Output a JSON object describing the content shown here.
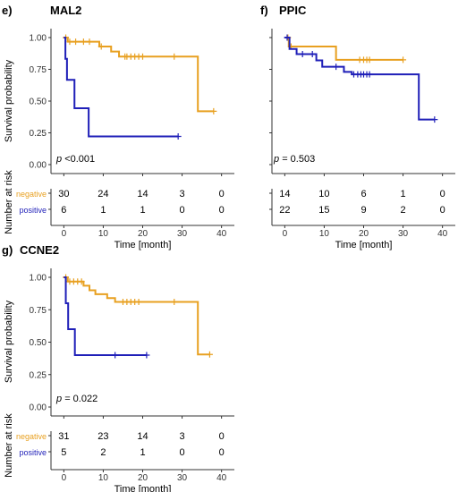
{
  "colors": {
    "negative": "#E8A020",
    "positive": "#1F1FB8",
    "axis": "#333333",
    "text": "#000000"
  },
  "common": {
    "ylabel": "Survival probability",
    "risk_ylabel": "Number at risk",
    "xlabel": "Time [month]",
    "groups": [
      "negative",
      "positive"
    ]
  },
  "chart_data": [
    {
      "type": "line",
      "panel": "e)",
      "title": "MAL2",
      "xlabel": "Time [month]",
      "ylabel": "Survival probability",
      "xlim": [
        0,
        40
      ],
      "ylim": [
        0,
        1
      ],
      "xticks": [
        0,
        10,
        20,
        30,
        40
      ],
      "yticks": [
        0.0,
        0.25,
        0.5,
        0.75,
        1.0
      ],
      "ytick_labels": [
        "0.00",
        "0.25",
        "0.50",
        "0.75",
        "1.00"
      ],
      "p_label": "p",
      "p_value": "<0.001",
      "series": [
        {
          "name": "negative",
          "steps": [
            [
              0,
              1.0
            ],
            [
              1,
              0.967
            ],
            [
              9,
              0.93
            ],
            [
              12,
              0.89
            ],
            [
              14,
              0.85
            ],
            [
              34,
              0.85
            ],
            [
              34,
              0.42
            ],
            [
              38,
              0.42
            ]
          ],
          "censor": [
            [
              0.5,
              1.0
            ],
            [
              1.5,
              0.967
            ],
            [
              3,
              0.967
            ],
            [
              5,
              0.967
            ],
            [
              6.5,
              0.967
            ],
            [
              9.5,
              0.93
            ],
            [
              15.5,
              0.85
            ],
            [
              16,
              0.85
            ],
            [
              17,
              0.85
            ],
            [
              18,
              0.85
            ],
            [
              19,
              0.85
            ],
            [
              20,
              0.85
            ],
            [
              28,
              0.85
            ],
            [
              38,
              0.42
            ]
          ]
        },
        {
          "name": "positive",
          "steps": [
            [
              0,
              1.0
            ],
            [
              0.4,
              0.833
            ],
            [
              0.8,
              0.667
            ],
            [
              2.7,
              0.667
            ],
            [
              2.7,
              0.444
            ],
            [
              6.3,
              0.444
            ],
            [
              6.3,
              0.222
            ],
            [
              29,
              0.222
            ]
          ],
          "censor": [
            [
              29,
              0.222
            ]
          ]
        }
      ],
      "risk_table": {
        "times": [
          0,
          10,
          20,
          30,
          40
        ],
        "negative": [
          30,
          24,
          14,
          3,
          0
        ],
        "positive": [
          6,
          1,
          1,
          0,
          0
        ]
      }
    },
    {
      "type": "line",
      "panel": "f)",
      "title": "PPIC",
      "xlabel": "Time [month]",
      "ylabel": "",
      "xlim": [
        0,
        40
      ],
      "ylim": [
        0,
        1
      ],
      "xticks": [
        0,
        10,
        20,
        30,
        40
      ],
      "yticks": [
        0.0,
        0.25,
        0.5,
        0.75,
        1.0
      ],
      "ytick_labels": [],
      "p_label": "p",
      "p_value": "= 0.503",
      "series": [
        {
          "name": "negative",
          "steps": [
            [
              0,
              1.0
            ],
            [
              1,
              0.93
            ],
            [
              13,
              0.93
            ],
            [
              13,
              0.825
            ],
            [
              30,
              0.825
            ]
          ],
          "censor": [
            [
              0.8,
              1.0
            ],
            [
              1.6,
              0.93
            ],
            [
              19,
              0.825
            ],
            [
              20,
              0.825
            ],
            [
              20.8,
              0.825
            ],
            [
              21.5,
              0.825
            ],
            [
              30,
              0.825
            ]
          ]
        },
        {
          "name": "positive",
          "steps": [
            [
              0,
              1.0
            ],
            [
              1.2,
              0.91
            ],
            [
              3,
              0.91
            ],
            [
              3,
              0.87
            ],
            [
              8,
              0.87
            ],
            [
              8,
              0.82
            ],
            [
              9.5,
              0.82
            ],
            [
              9.5,
              0.77
            ],
            [
              15,
              0.77
            ],
            [
              15,
              0.73
            ],
            [
              17,
              0.73
            ],
            [
              17,
              0.71
            ],
            [
              34,
              0.71
            ],
            [
              34,
              0.355
            ],
            [
              38,
              0.355
            ]
          ],
          "censor": [
            [
              0.6,
              1.0
            ],
            [
              4.5,
              0.87
            ],
            [
              7,
              0.87
            ],
            [
              13,
              0.77
            ],
            [
              17.5,
              0.71
            ],
            [
              18.5,
              0.71
            ],
            [
              19.3,
              0.71
            ],
            [
              20,
              0.71
            ],
            [
              20.8,
              0.71
            ],
            [
              21.5,
              0.71
            ],
            [
              38,
              0.355
            ]
          ]
        }
      ],
      "risk_table": {
        "times": [
          0,
          10,
          20,
          30,
          40
        ],
        "negative": [
          14,
          10,
          6,
          1,
          0
        ],
        "positive": [
          22,
          15,
          9,
          2,
          0
        ]
      }
    },
    {
      "type": "line",
      "panel": "g)",
      "title": "CCNE2",
      "xlabel": "Time [month]",
      "ylabel": "Survival probability",
      "xlim": [
        0,
        40
      ],
      "ylim": [
        0,
        1
      ],
      "xticks": [
        0,
        10,
        20,
        30,
        40
      ],
      "yticks": [
        0.0,
        0.25,
        0.5,
        0.75,
        1.0
      ],
      "ytick_labels": [
        "0.00",
        "0.25",
        "0.50",
        "0.75",
        "1.00"
      ],
      "p_label": "p",
      "p_value": "= 0.022",
      "series": [
        {
          "name": "negative",
          "steps": [
            [
              0,
              1.0
            ],
            [
              1,
              0.967
            ],
            [
              5,
              0.967
            ],
            [
              5,
              0.935
            ],
            [
              6.5,
              0.935
            ],
            [
              6.5,
              0.9
            ],
            [
              8,
              0.9
            ],
            [
              8,
              0.87
            ],
            [
              11,
              0.87
            ],
            [
              11,
              0.84
            ],
            [
              13,
              0.84
            ],
            [
              13,
              0.81
            ],
            [
              34,
              0.81
            ],
            [
              34,
              0.405
            ],
            [
              37,
              0.405
            ]
          ],
          "censor": [
            [
              0.5,
              1.0
            ],
            [
              1.5,
              0.967
            ],
            [
              2.5,
              0.967
            ],
            [
              3.5,
              0.967
            ],
            [
              4.5,
              0.967
            ],
            [
              15,
              0.81
            ],
            [
              16,
              0.81
            ],
            [
              17,
              0.81
            ],
            [
              18,
              0.81
            ],
            [
              19,
              0.81
            ],
            [
              28,
              0.81
            ],
            [
              37,
              0.405
            ]
          ]
        },
        {
          "name": "positive",
          "steps": [
            [
              0,
              1.0
            ],
            [
              0.5,
              0.8
            ],
            [
              1.1,
              0.8
            ],
            [
              1.1,
              0.6
            ],
            [
              2.8,
              0.6
            ],
            [
              2.8,
              0.4
            ],
            [
              21,
              0.4
            ]
          ],
          "censor": [
            [
              13,
              0.4
            ],
            [
              21,
              0.4
            ]
          ]
        }
      ],
      "risk_table": {
        "times": [
          0,
          10,
          20,
          30,
          40
        ],
        "negative": [
          31,
          23,
          14,
          3,
          0
        ],
        "positive": [
          5,
          2,
          1,
          0,
          0
        ]
      }
    }
  ]
}
